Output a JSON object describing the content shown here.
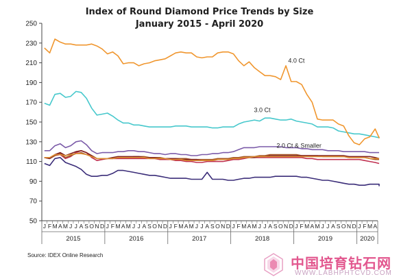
{
  "chart_data": {
    "type": "line",
    "title": "Index of Round Diamond Price Trends by Size",
    "subtitle": "January 2015 - April 2020",
    "xlabel": "",
    "ylabel": "",
    "ylim": [
      50,
      250
    ],
    "yticks": [
      50,
      70,
      90,
      110,
      130,
      150,
      170,
      190,
      210,
      230,
      250
    ],
    "grid": false,
    "x_start": "2015-01",
    "x_end": "2020-04",
    "month_labels": [
      "J",
      "F",
      "M",
      "A",
      "M",
      "J",
      "J",
      "A",
      "S",
      "O",
      "N",
      "D",
      "J",
      "F",
      "M",
      "A",
      "M",
      "J",
      "J",
      "A",
      "S",
      "O",
      "N",
      "D",
      "J",
      "F",
      "M",
      "A",
      "M",
      "J",
      "J",
      "A",
      "S",
      "O",
      "N",
      "D",
      "J",
      "F",
      "M",
      "A",
      "M",
      "J",
      "J",
      "A",
      "S",
      "O",
      "N",
      "D",
      "J",
      "F",
      "M",
      "A",
      "M",
      "J",
      "J",
      "A",
      "S",
      "O",
      "N",
      "D",
      "J",
      "F",
      "M",
      "A"
    ],
    "year_labels": [
      {
        "label": "2015",
        "start": 0,
        "end": 11
      },
      {
        "label": "2016",
        "start": 12,
        "end": 23
      },
      {
        "label": "2017",
        "start": 24,
        "end": 35
      },
      {
        "label": "2018",
        "start": 36,
        "end": 47
      },
      {
        "label": "2019",
        "start": 48,
        "end": 59
      },
      {
        "label": "2020",
        "start": 60,
        "end": 63
      }
    ],
    "series": [
      {
        "name": "4.0 Ct",
        "color": "#f0962e",
        "label_at": [
          48,
          212
        ],
        "values": [
          225,
          220,
          234,
          231,
          229,
          229,
          228,
          228,
          228,
          229,
          227,
          224,
          219,
          221,
          217,
          209,
          210,
          210,
          207,
          209,
          210,
          212,
          213,
          214,
          217,
          220,
          221,
          220,
          220,
          216,
          215,
          216,
          216,
          220,
          221,
          221,
          219,
          212,
          207,
          211,
          205,
          201,
          197,
          197,
          196,
          193,
          207,
          191,
          191,
          188,
          178,
          170,
          153,
          152,
          152,
          152,
          148,
          146,
          136,
          129,
          127,
          133,
          135,
          143,
          134,
          135
        ]
      },
      {
        "name": "3.0 Ct",
        "color": "#46c8cc",
        "label_at": [
          41.5,
          162
        ],
        "values": [
          169,
          167,
          178,
          179,
          175,
          176,
          181,
          180,
          174,
          164,
          157,
          158,
          159,
          156,
          152,
          149,
          149,
          147,
          147,
          146,
          145,
          145,
          145,
          145,
          145,
          146,
          146,
          146,
          145,
          145,
          145,
          145,
          144,
          144,
          145,
          145,
          145,
          148,
          150,
          151,
          152,
          151,
          154,
          154,
          153,
          152,
          152,
          153,
          151,
          150,
          149,
          148,
          145,
          145,
          145,
          144,
          141,
          140,
          139,
          138,
          138,
          137,
          136,
          135,
          134,
          134
        ]
      },
      {
        "name": "2.0 Ct & Smaller",
        "color": "#dd8f34",
        "label_at": [
          48.5,
          126
        ],
        "values": [
          114,
          114,
          117,
          117,
          116,
          117,
          118,
          118,
          117,
          115,
          113,
          113,
          113,
          113,
          114,
          114,
          114,
          114,
          114,
          114,
          113,
          113,
          113,
          113,
          112,
          112,
          112,
          111,
          111,
          111,
          111,
          111,
          111,
          112,
          112,
          112,
          113,
          113,
          114,
          114,
          115,
          115,
          115,
          115,
          115,
          115,
          115,
          115,
          115,
          115,
          115,
          115,
          115,
          115,
          115,
          115,
          115,
          115,
          114,
          114,
          114,
          114,
          113,
          113,
          113,
          113
        ]
      },
      {
        "name": "",
        "color": "#7a5aa8",
        "values": [
          121,
          121,
          126,
          128,
          124,
          126,
          130,
          131,
          127,
          121,
          118,
          119,
          119,
          119,
          120,
          120,
          121,
          121,
          120,
          120,
          119,
          118,
          118,
          117,
          118,
          118,
          117,
          117,
          116,
          116,
          117,
          117,
          118,
          118,
          119,
          119,
          120,
          122,
          124,
          124,
          124,
          125,
          125,
          125,
          125,
          125,
          124,
          124,
          124,
          123,
          123,
          122,
          122,
          122,
          121,
          121,
          121,
          120,
          120,
          120,
          120,
          120,
          119,
          119,
          119,
          119
        ]
      },
      {
        "name": "",
        "color": "#7f1f1f",
        "values": [
          114,
          113,
          117,
          119,
          116,
          118,
          120,
          121,
          119,
          116,
          113,
          113,
          113,
          114,
          115,
          115,
          115,
          115,
          115,
          114,
          114,
          114,
          113,
          113,
          113,
          113,
          112,
          112,
          112,
          112,
          111,
          111,
          111,
          112,
          112,
          112,
          113,
          113,
          114,
          114,
          114,
          115,
          115,
          116,
          116,
          116,
          116,
          116,
          116,
          116,
          116,
          116,
          116,
          116,
          116,
          116,
          116,
          116,
          115,
          115,
          115,
          115,
          115,
          114,
          113,
          113
        ]
      },
      {
        "name": "",
        "color": "#a65a28",
        "values": [
          114,
          113,
          116,
          118,
          114,
          116,
          118,
          119,
          117,
          115,
          113,
          113,
          113,
          113,
          114,
          114,
          114,
          115,
          115,
          115,
          114,
          114,
          114,
          113,
          113,
          113,
          113,
          113,
          112,
          112,
          112,
          112,
          112,
          113,
          113,
          113,
          114,
          114,
          115,
          115,
          115,
          116,
          116,
          117,
          117,
          117,
          117,
          117,
          117,
          116,
          116,
          116,
          116,
          115,
          115,
          115,
          115,
          115,
          114,
          114,
          114,
          114,
          113,
          112,
          112,
          112
        ]
      },
      {
        "name": "",
        "color": "#c03050",
        "values": [
          114,
          113,
          116,
          117,
          113,
          115,
          119,
          121,
          119,
          114,
          111,
          112,
          113,
          113,
          113,
          113,
          113,
          113,
          113,
          113,
          113,
          113,
          112,
          112,
          112,
          111,
          111,
          110,
          110,
          109,
          109,
          110,
          110,
          110,
          110,
          111,
          112,
          112,
          113,
          114,
          114,
          114,
          114,
          114,
          114,
          114,
          114,
          114,
          114,
          114,
          113,
          113,
          112,
          112,
          112,
          112,
          112,
          112,
          112,
          112,
          112,
          111,
          110,
          109,
          108,
          108
        ]
      },
      {
        "name": "",
        "color": "#3a2c78",
        "values": [
          108,
          106,
          113,
          114,
          109,
          107,
          105,
          102,
          97,
          95,
          95,
          96,
          96,
          98,
          101,
          101,
          100,
          99,
          98,
          97,
          96,
          96,
          95,
          94,
          93,
          93,
          93,
          93,
          92,
          92,
          92,
          99,
          92,
          92,
          92,
          91,
          91,
          92,
          93,
          93,
          94,
          94,
          94,
          94,
          95,
          95,
          95,
          95,
          95,
          94,
          94,
          93,
          92,
          91,
          91,
          90,
          89,
          88,
          87,
          87,
          86,
          86,
          87,
          87,
          87,
          85
        ]
      }
    ]
  },
  "source": "Source:  IDEX Online  Research",
  "watermark": {
    "text_cn": "中国培育钻石网",
    "url": "WWW.LABHPHTCVD.COM"
  }
}
